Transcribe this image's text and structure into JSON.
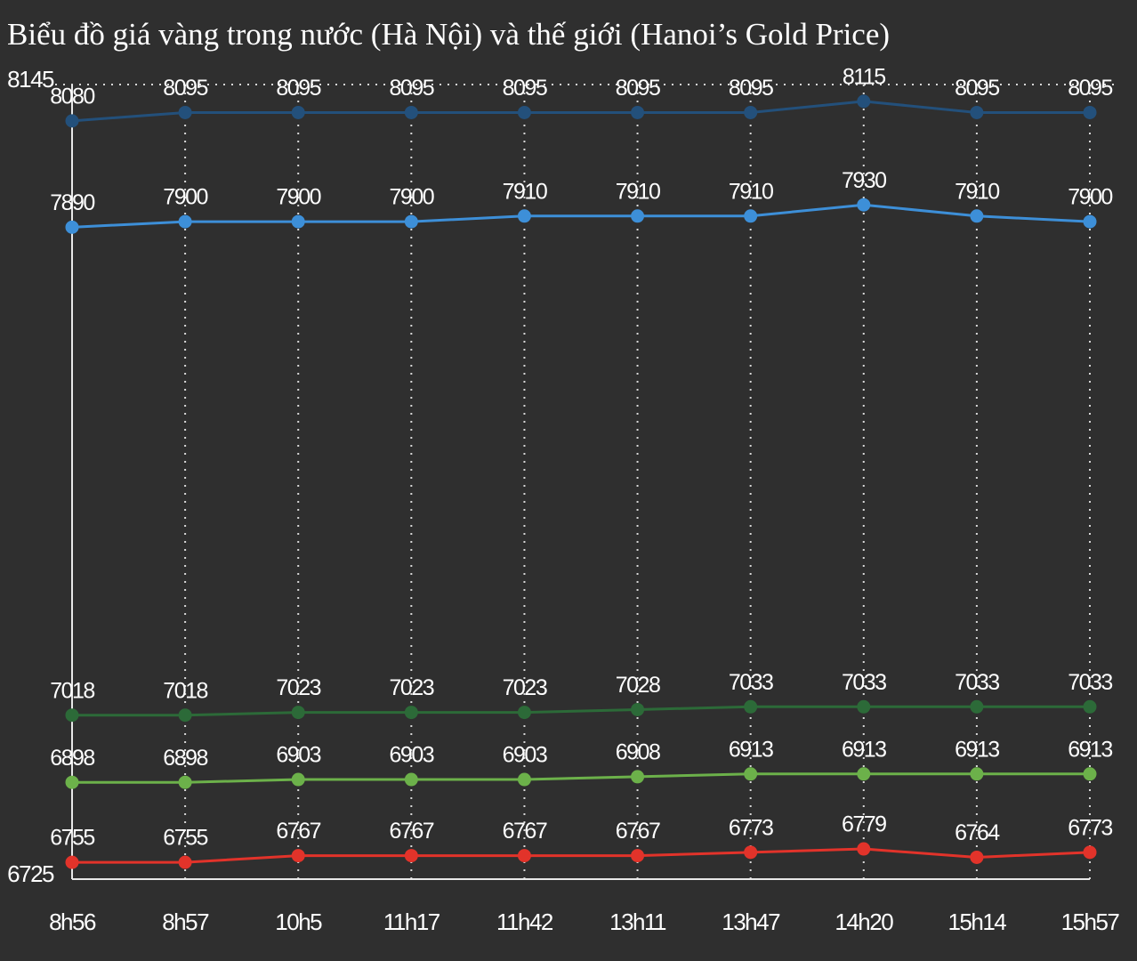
{
  "chart_data": {
    "type": "line",
    "title": "Biểu đồ giá vàng trong nước (Hà Nội) và thế giới (Hanoi’s Gold Price)",
    "categories": [
      "8h56",
      "8h57",
      "10h5",
      "11h17",
      "11h42",
      "13h11",
      "13h47",
      "14h20",
      "15h14",
      "15h57"
    ],
    "series": [
      {
        "color": "#23507b",
        "values": [
          8080,
          8095,
          8095,
          8095,
          8095,
          8095,
          8095,
          8115,
          8095,
          8095
        ]
      },
      {
        "color": "#3d8fd8",
        "values": [
          7890,
          7900,
          7900,
          7900,
          7910,
          7910,
          7910,
          7930,
          7910,
          7900
        ]
      },
      {
        "color": "#2c6a38",
        "values": [
          7018,
          7018,
          7023,
          7023,
          7023,
          7028,
          7033,
          7033,
          7033,
          7033
        ]
      },
      {
        "color": "#6cb14a",
        "values": [
          6898,
          6898,
          6903,
          6903,
          6903,
          6908,
          6913,
          6913,
          6913,
          6913
        ]
      },
      {
        "color": "#e2332a",
        "values": [
          6755,
          6755,
          6767,
          6767,
          6767,
          6767,
          6773,
          6779,
          6764,
          6773
        ]
      }
    ],
    "ylim": [
      6725,
      8145
    ],
    "yticks": [
      6725,
      8145
    ],
    "grid": true
  }
}
